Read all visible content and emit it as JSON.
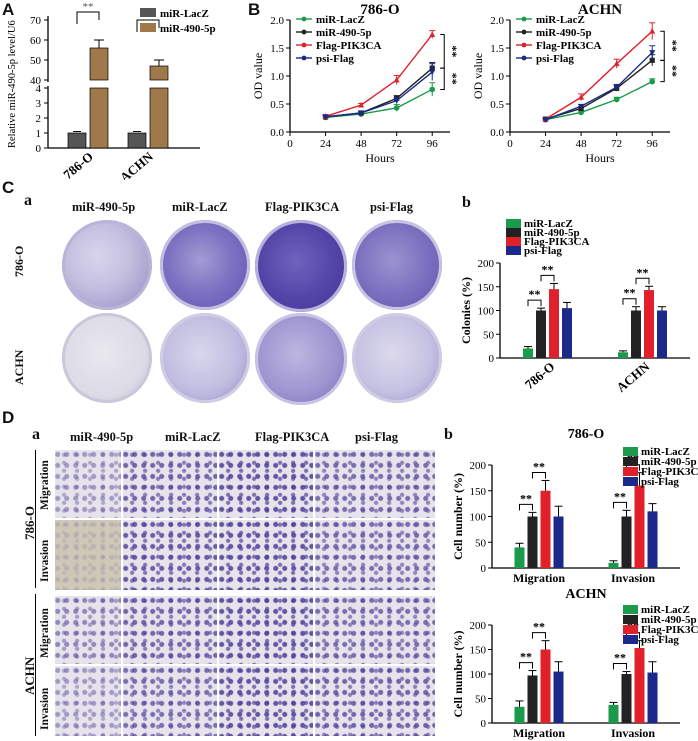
{
  "panels": {
    "A": "A",
    "B": "B",
    "C": "C",
    "D": "D",
    "Ca": "a",
    "Cb": "b",
    "Da": "a",
    "Db": "b"
  },
  "colors": {
    "lacz": "#1a9a4a",
    "mir490": "#222222",
    "flag": "#e0202a",
    "psi": "#1b2a8a",
    "ctrl": "#555555",
    "mir490_tan": "#a0794a",
    "stain": "#4b3b9a"
  },
  "sig": "**",
  "panelA": {
    "chart_data": {
      "type": "bar",
      "categories": [
        "786-O",
        "ACHN"
      ],
      "series": [
        {
          "name": "miR-LacZ",
          "values": [
            1,
            1
          ],
          "err": [
            0.1,
            0.1
          ]
        },
        {
          "name": "miR-490-5p",
          "values": [
            56,
            47
          ],
          "err": [
            4,
            3
          ]
        }
      ],
      "ylabel": "Relative miR-490-5p level/U6",
      "yticks": [
        "0",
        "1",
        "2",
        "3",
        "4",
        "40",
        "50",
        "60",
        "70"
      ],
      "ylim": [
        0,
        70
      ],
      "axis_break": true
    }
  },
  "panelB": {
    "chart_data": [
      {
        "type": "line",
        "title": "786-O",
        "xlabel": "Hours",
        "ylabel": "OD value",
        "x": [
          0,
          24,
          48,
          72,
          96
        ],
        "xlim": [
          0,
          108
        ],
        "ylim": [
          0,
          2.0
        ],
        "series": [
          {
            "name": "miR-LacZ",
            "x": [
              24,
              48,
              72,
              96
            ],
            "values": [
              0.26,
              0.32,
              0.43,
              0.76
            ],
            "err": [
              0.03,
              0.03,
              0.06,
              0.12
            ]
          },
          {
            "name": "miR-490-5p",
            "x": [
              24,
              48,
              72,
              96
            ],
            "values": [
              0.27,
              0.34,
              0.6,
              1.14
            ],
            "err": [
              0.03,
              0.03,
              0.05,
              0.1
            ]
          },
          {
            "name": "Flag-PIK3CA",
            "x": [
              24,
              48,
              72,
              96
            ],
            "values": [
              0.28,
              0.48,
              0.93,
              1.74
            ],
            "err": [
              0.03,
              0.03,
              0.08,
              0.07
            ]
          },
          {
            "name": "psi-Flag",
            "x": [
              24,
              48,
              72,
              96
            ],
            "values": [
              0.27,
              0.34,
              0.56,
              1.07
            ],
            "err": [
              0.03,
              0.03,
              0.05,
              0.15
            ]
          }
        ]
      },
      {
        "type": "line",
        "title": "ACHN",
        "xlabel": "Hours",
        "ylabel": "OD value",
        "x": [
          0,
          24,
          48,
          72,
          96
        ],
        "xlim": [
          0,
          108
        ],
        "ylim": [
          0,
          2.0
        ],
        "series": [
          {
            "name": "miR-LacZ",
            "x": [
              24,
              48,
              72,
              96
            ],
            "values": [
              0.22,
              0.35,
              0.58,
              0.9
            ],
            "err": [
              0.02,
              0.03,
              0.04,
              0.05
            ]
          },
          {
            "name": "miR-490-5p",
            "x": [
              24,
              48,
              72,
              96
            ],
            "values": [
              0.23,
              0.42,
              0.78,
              1.28
            ],
            "err": [
              0.02,
              0.03,
              0.05,
              0.1
            ]
          },
          {
            "name": "Flag-PIK3CA",
            "x": [
              24,
              48,
              72,
              96
            ],
            "values": [
              0.23,
              0.62,
              1.22,
              1.8
            ],
            "err": [
              0.02,
              0.06,
              0.08,
              0.15
            ]
          },
          {
            "name": "psi-Flag",
            "x": [
              24,
              48,
              72,
              96
            ],
            "values": [
              0.22,
              0.46,
              0.8,
              1.42
            ],
            "err": [
              0.02,
              0.03,
              0.05,
              0.12
            ]
          }
        ]
      }
    ]
  },
  "panelC": {
    "columns": [
      "miR-490-5p",
      "miR-LacZ",
      "Flag-PIK3CA",
      "psi-Flag"
    ],
    "rows": [
      "786-O",
      "ACHN"
    ],
    "chart_data": {
      "type": "bar",
      "categories": [
        "786-O",
        "ACHN"
      ],
      "ylabel": "Colonies (%)",
      "ylim": [
        0,
        200
      ],
      "yticks": [
        "0",
        "50",
        "100",
        "150",
        "200"
      ],
      "series": [
        {
          "name": "miR-LacZ",
          "values": [
            20,
            12
          ],
          "err": [
            4,
            3
          ]
        },
        {
          "name": "miR-490-5p",
          "values": [
            100,
            100
          ],
          "err": [
            5,
            8
          ]
        },
        {
          "name": "Flag-PIK3CA",
          "values": [
            145,
            143
          ],
          "err": [
            12,
            8
          ]
        },
        {
          "name": "psi-Flag",
          "values": [
            105,
            100
          ],
          "err": [
            12,
            8
          ]
        }
      ]
    }
  },
  "panelD": {
    "columns": [
      "miR-490-5p",
      "miR-LacZ",
      "Flag-PIK3CA",
      "psi-Flag"
    ],
    "cells": [
      "786-O",
      "ACHN"
    ],
    "assays": [
      "Migration",
      "Invasion"
    ],
    "chart_data": [
      {
        "type": "bar",
        "title": "786-O",
        "categories": [
          "Migration",
          "Invasion"
        ],
        "ylabel": "Cell number (%)",
        "ylim": [
          0,
          200
        ],
        "yticks": [
          "0",
          "50",
          "100",
          "150",
          "200"
        ],
        "series": [
          {
            "name": "miR-LacZ",
            "values": [
              40,
              10
            ],
            "err": [
              8,
              4
            ]
          },
          {
            "name": "miR-490-5p",
            "values": [
              100,
              100
            ],
            "err": [
              8,
              12
            ]
          },
          {
            "name": "Flag-PIK3CA",
            "values": [
              150,
              160
            ],
            "err": [
              20,
              25
            ]
          },
          {
            "name": "psi-Flag",
            "values": [
              100,
              110
            ],
            "err": [
              20,
              15
            ]
          }
        ]
      },
      {
        "type": "bar",
        "title": "ACHN",
        "categories": [
          "Migration",
          "Invasion"
        ],
        "ylabel": "Cell number (%)",
        "ylim": [
          0,
          200
        ],
        "yticks": [
          "0",
          "50",
          "100",
          "150",
          "200"
        ],
        "series": [
          {
            "name": "miR-LacZ",
            "values": [
              33,
              37
            ],
            "err": [
              12,
              5
            ]
          },
          {
            "name": "miR-490-5p",
            "values": [
              97,
              100
            ],
            "err": [
              10,
              5
            ]
          },
          {
            "name": "Flag-PIK3CA",
            "values": [
              150,
              153
            ],
            "err": [
              18,
              15
            ]
          },
          {
            "name": "psi-Flag",
            "values": [
              105,
              103
            ],
            "err": [
              20,
              22
            ]
          }
        ]
      }
    ]
  }
}
